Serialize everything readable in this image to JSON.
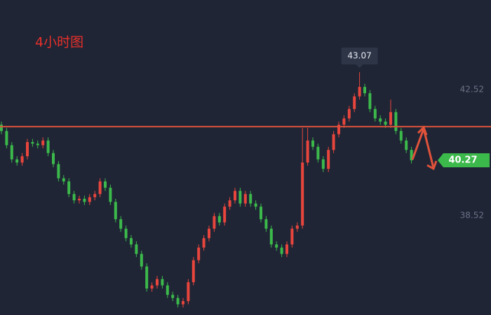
{
  "chart_data": {
    "type": "candlestick",
    "annotation": "4小时图",
    "open": [
      41.4,
      41.2,
      40.75,
      40.3,
      40.2,
      40.4,
      40.85,
      40.8,
      40.75,
      40.9,
      40.5,
      40.15,
      39.7,
      39.6,
      39.2,
      39.0,
      39.05,
      38.95,
      39.1,
      39.2,
      39.6,
      39.4,
      38.95,
      38.4,
      38.1,
      37.8,
      37.6,
      37.3,
      36.9,
      36.2,
      36.3,
      36.5,
      36.3,
      36.0,
      35.9,
      35.7,
      35.8,
      36.4,
      37.1,
      37.5,
      37.8,
      38.1,
      38.5,
      38.3,
      38.8,
      39.0,
      39.3,
      38.9,
      39.2,
      38.9,
      38.8,
      38.4,
      38.1,
      37.6,
      37.5,
      37.3,
      37.6,
      38.1,
      38.2,
      40.2,
      40.9,
      40.7,
      40.3,
      40.0,
      40.6,
      41.1,
      41.4,
      41.6,
      41.9,
      42.3,
      42.6,
      42.4,
      41.9,
      41.6,
      41.5,
      41.4,
      41.8,
      41.2,
      40.9,
      40.6
    ],
    "high": [
      41.5,
      41.3,
      40.85,
      40.4,
      40.5,
      40.95,
      40.95,
      40.9,
      41.0,
      41.0,
      40.6,
      40.25,
      39.8,
      39.7,
      39.3,
      39.15,
      39.15,
      39.2,
      39.3,
      39.7,
      39.7,
      39.5,
      39.05,
      38.5,
      38.2,
      37.9,
      37.7,
      37.4,
      37.0,
      36.4,
      36.6,
      36.6,
      36.4,
      36.1,
      36.0,
      35.9,
      36.5,
      37.2,
      37.6,
      37.9,
      38.2,
      38.6,
      38.6,
      38.9,
      39.1,
      39.4,
      39.4,
      39.3,
      39.3,
      39.0,
      38.9,
      38.5,
      38.2,
      37.7,
      37.6,
      37.7,
      38.2,
      38.3,
      41.3,
      41.3,
      41.0,
      40.8,
      40.4,
      40.7,
      41.2,
      41.5,
      41.7,
      42.0,
      42.4,
      43.07,
      42.7,
      42.5,
      42.0,
      41.7,
      41.6,
      42.2,
      41.9,
      41.3,
      41.0,
      40.7
    ],
    "low": [
      41.1,
      40.65,
      40.2,
      40.1,
      40.1,
      40.3,
      40.7,
      40.65,
      40.65,
      40.4,
      40.05,
      39.6,
      39.5,
      39.1,
      38.9,
      38.9,
      38.85,
      38.85,
      39.0,
      39.1,
      39.3,
      38.85,
      38.3,
      38.0,
      37.7,
      37.5,
      37.2,
      36.8,
      36.1,
      36.1,
      36.2,
      36.2,
      35.9,
      35.8,
      35.6,
      35.6,
      35.7,
      36.3,
      37.0,
      37.4,
      37.7,
      38.0,
      38.2,
      38.2,
      38.7,
      38.9,
      38.8,
      38.8,
      38.8,
      38.7,
      38.3,
      38.0,
      37.5,
      37.4,
      37.2,
      37.2,
      37.5,
      38.0,
      38.1,
      40.1,
      40.6,
      40.2,
      39.9,
      39.9,
      40.5,
      41.0,
      41.3,
      41.5,
      41.8,
      42.2,
      42.3,
      41.8,
      41.5,
      41.4,
      41.3,
      41.3,
      41.1,
      40.8,
      40.5,
      40.17
    ],
    "close": [
      41.2,
      40.75,
      40.3,
      40.2,
      40.4,
      40.85,
      40.8,
      40.75,
      40.9,
      40.5,
      40.15,
      39.7,
      39.6,
      39.2,
      39.0,
      39.05,
      38.95,
      39.1,
      39.2,
      39.6,
      39.4,
      38.95,
      38.4,
      38.1,
      37.8,
      37.6,
      37.3,
      36.9,
      36.2,
      36.3,
      36.5,
      36.3,
      36.0,
      35.9,
      35.7,
      35.8,
      36.4,
      37.1,
      37.5,
      37.8,
      38.1,
      38.5,
      38.3,
      38.8,
      39.0,
      39.3,
      38.9,
      39.2,
      38.9,
      38.8,
      38.4,
      38.1,
      37.6,
      37.5,
      37.3,
      37.6,
      38.1,
      38.2,
      40.2,
      40.9,
      40.7,
      40.3,
      40.0,
      40.6,
      41.1,
      41.4,
      41.6,
      41.9,
      42.3,
      42.6,
      42.4,
      41.9,
      41.6,
      41.5,
      41.4,
      41.8,
      41.2,
      40.9,
      40.6,
      40.27
    ],
    "up_color": "#e8453c",
    "down_color": "#3cb94b",
    "ylim": [
      35.36,
      45.36
    ],
    "yticks": [
      38.52,
      42.52
    ],
    "high_label": 43.07,
    "last_price": 40.27,
    "hline": 41.34,
    "hline_color": "#e0523a"
  }
}
